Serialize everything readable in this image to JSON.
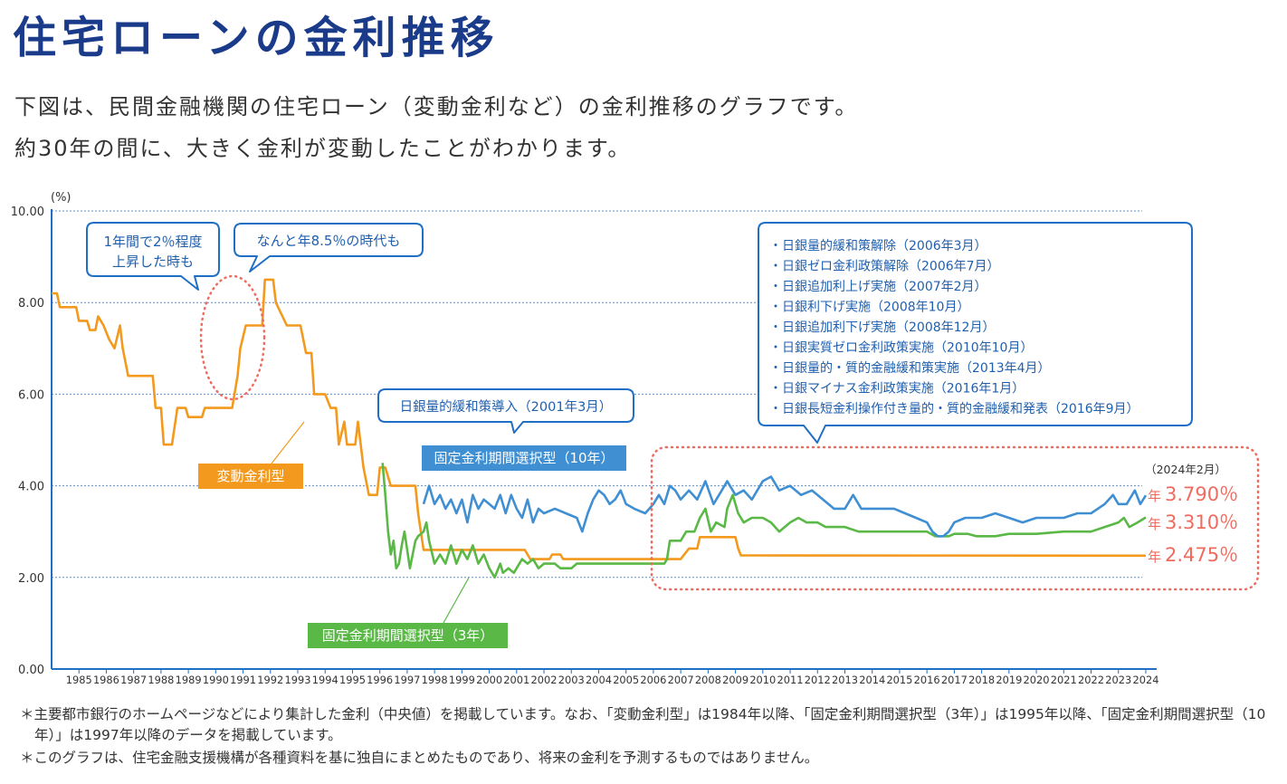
{
  "title": "住宅ローンの金利推移",
  "intro": [
    "下図は、民間金融機関の住宅ローン（変動金利など）の金利推移のグラフです。",
    "約30年の間に、大きく金利が変動したことがわかります。"
  ],
  "notes": [
    "＊主要都市銀行のホームページなどにより集計した金利（中央値）を掲載しています。なお、「変動金利型」は1984年以降、「固定金利期間選択型（3年）」は1995年以降、「固定金利期間選択型（10年）」は1997年以降のデータを掲載しています。",
    "＊このグラフは、住宅金融支援機構が各種資料を基に独自にまとめたものであり、将来の金利を予測するものではありません。"
  ],
  "colors": {
    "title": "#1a3a8a",
    "axis": "#1f6fc5",
    "grid": "#5a8fd0",
    "variable": "#f39a1e",
    "fixed3": "#5ab946",
    "fixed10": "#3f8fd2",
    "accent_red": "#ef6b5f"
  },
  "chart_data": {
    "type": "line",
    "ylabel": "(%)",
    "ylim": [
      0,
      10
    ],
    "yticks": [
      "0.00",
      "2.00",
      "4.00",
      "6.00",
      "8.00",
      "10.00"
    ],
    "xlim": [
      1984,
      2024.2
    ],
    "xticks": [
      "1985",
      "1986",
      "1987",
      "1988",
      "1989",
      "1990",
      "1991",
      "1992",
      "1993",
      "1994",
      "1995",
      "1996",
      "1997",
      "1998",
      "1999",
      "2000",
      "2001",
      "2002",
      "2003",
      "2004",
      "2005",
      "2006",
      "2007",
      "2008",
      "2009",
      "2010",
      "2011",
      "2012",
      "2013",
      "2014",
      "2015",
      "2016",
      "2017",
      "2018",
      "2019",
      "2020",
      "2021",
      "2022",
      "2023",
      "2024"
    ],
    "series": [
      {
        "name": "変動金利型",
        "color": "#f39a1e",
        "points": [
          [
            1984.0,
            8.2
          ],
          [
            1984.2,
            8.2
          ],
          [
            1984.3,
            7.9
          ],
          [
            1984.9,
            7.9
          ],
          [
            1985.0,
            7.6
          ],
          [
            1985.3,
            7.6
          ],
          [
            1985.4,
            7.4
          ],
          [
            1985.6,
            7.4
          ],
          [
            1985.7,
            7.7
          ],
          [
            1985.9,
            7.5
          ],
          [
            1986.1,
            7.2
          ],
          [
            1986.3,
            7.0
          ],
          [
            1986.5,
            7.5
          ],
          [
            1986.6,
            7.0
          ],
          [
            1986.8,
            6.4
          ],
          [
            1987.7,
            6.4
          ],
          [
            1987.8,
            5.7
          ],
          [
            1988.0,
            5.7
          ],
          [
            1988.1,
            4.9
          ],
          [
            1988.4,
            4.9
          ],
          [
            1988.6,
            5.7
          ],
          [
            1988.9,
            5.7
          ],
          [
            1989.0,
            5.5
          ],
          [
            1989.5,
            5.5
          ],
          [
            1989.6,
            5.7
          ],
          [
            1990.6,
            5.7
          ],
          [
            1990.8,
            6.4
          ],
          [
            1990.9,
            7.0
          ],
          [
            1991.1,
            7.5
          ],
          [
            1991.7,
            7.5
          ],
          [
            1991.8,
            8.5
          ],
          [
            1992.1,
            8.5
          ],
          [
            1992.2,
            8.0
          ],
          [
            1992.6,
            7.5
          ],
          [
            1993.1,
            7.5
          ],
          [
            1993.3,
            6.9
          ],
          [
            1993.5,
            6.9
          ],
          [
            1993.6,
            6.0
          ],
          [
            1994.0,
            6.0
          ],
          [
            1994.2,
            5.7
          ],
          [
            1994.4,
            5.7
          ],
          [
            1994.5,
            4.9
          ],
          [
            1994.7,
            5.4
          ],
          [
            1994.8,
            4.9
          ],
          [
            1995.1,
            4.9
          ],
          [
            1995.2,
            5.4
          ],
          [
            1995.4,
            4.4
          ],
          [
            1995.6,
            3.8
          ],
          [
            1995.9,
            3.8
          ],
          [
            1996.0,
            4.4
          ],
          [
            1996.2,
            4.4
          ],
          [
            1996.4,
            4.0
          ],
          [
            1997.3,
            4.0
          ],
          [
            1997.4,
            3.4
          ],
          [
            1997.6,
            2.6
          ],
          [
            2001.3,
            2.6
          ],
          [
            2001.5,
            2.4
          ],
          [
            2002.2,
            2.4
          ],
          [
            2002.3,
            2.5
          ],
          [
            2002.6,
            2.5
          ],
          [
            2002.7,
            2.4
          ],
          [
            2007.0,
            2.4
          ],
          [
            2007.3,
            2.63
          ],
          [
            2007.6,
            2.63
          ],
          [
            2007.7,
            2.88
          ],
          [
            2009.0,
            2.88
          ],
          [
            2009.1,
            2.63
          ],
          [
            2009.2,
            2.48
          ],
          [
            2024.0,
            2.475
          ]
        ]
      },
      {
        "name": "固定金利期間選択型（3年）",
        "color": "#5ab946",
        "points": [
          [
            1996.1,
            4.5
          ],
          [
            1996.2,
            3.8
          ],
          [
            1996.3,
            3.0
          ],
          [
            1996.4,
            2.5
          ],
          [
            1996.5,
            2.8
          ],
          [
            1996.6,
            2.2
          ],
          [
            1996.7,
            2.3
          ],
          [
            1996.8,
            2.7
          ],
          [
            1996.9,
            3.0
          ],
          [
            1997.0,
            2.6
          ],
          [
            1997.1,
            2.2
          ],
          [
            1997.3,
            2.8
          ],
          [
            1997.4,
            2.9
          ],
          [
            1997.6,
            3.0
          ],
          [
            1997.7,
            3.2
          ],
          [
            1997.8,
            2.8
          ],
          [
            1998.0,
            2.3
          ],
          [
            1998.2,
            2.5
          ],
          [
            1998.4,
            2.3
          ],
          [
            1998.6,
            2.7
          ],
          [
            1998.8,
            2.3
          ],
          [
            1999.0,
            2.6
          ],
          [
            1999.2,
            2.4
          ],
          [
            1999.4,
            2.7
          ],
          [
            1999.6,
            2.3
          ],
          [
            1999.8,
            2.5
          ],
          [
            2000.0,
            2.2
          ],
          [
            2000.2,
            2.0
          ],
          [
            2000.4,
            2.3
          ],
          [
            2000.5,
            2.1
          ],
          [
            2000.7,
            2.2
          ],
          [
            2000.9,
            2.1
          ],
          [
            2001.0,
            2.2
          ],
          [
            2001.2,
            2.4
          ],
          [
            2001.4,
            2.3
          ],
          [
            2001.6,
            2.4
          ],
          [
            2001.8,
            2.2
          ],
          [
            2002.0,
            2.3
          ],
          [
            2002.4,
            2.3
          ],
          [
            2002.6,
            2.2
          ],
          [
            2003.0,
            2.2
          ],
          [
            2003.2,
            2.3
          ],
          [
            2006.4,
            2.3
          ],
          [
            2006.5,
            2.4
          ],
          [
            2006.6,
            2.8
          ],
          [
            2007.0,
            2.8
          ],
          [
            2007.2,
            3.0
          ],
          [
            2007.5,
            3.0
          ],
          [
            2007.7,
            3.3
          ],
          [
            2007.9,
            3.5
          ],
          [
            2008.1,
            3.0
          ],
          [
            2008.3,
            3.2
          ],
          [
            2008.6,
            3.1
          ],
          [
            2008.7,
            3.5
          ],
          [
            2008.9,
            3.8
          ],
          [
            2009.1,
            3.4
          ],
          [
            2009.3,
            3.2
          ],
          [
            2009.6,
            3.3
          ],
          [
            2010.0,
            3.3
          ],
          [
            2010.3,
            3.2
          ],
          [
            2010.6,
            3.0
          ],
          [
            2011.0,
            3.2
          ],
          [
            2011.3,
            3.3
          ],
          [
            2011.6,
            3.2
          ],
          [
            2012.0,
            3.2
          ],
          [
            2012.3,
            3.1
          ],
          [
            2013.0,
            3.1
          ],
          [
            2013.5,
            3.0
          ],
          [
            2014.5,
            3.0
          ],
          [
            2015.0,
            3.0
          ],
          [
            2016.0,
            3.0
          ],
          [
            2016.3,
            2.9
          ],
          [
            2016.5,
            2.9
          ],
          [
            2016.8,
            2.9
          ],
          [
            2017.0,
            2.95
          ],
          [
            2017.5,
            2.95
          ],
          [
            2017.8,
            2.9
          ],
          [
            2018.5,
            2.9
          ],
          [
            2019.0,
            2.95
          ],
          [
            2020.0,
            2.95
          ],
          [
            2021.0,
            3.0
          ],
          [
            2022.0,
            3.0
          ],
          [
            2022.5,
            3.1
          ],
          [
            2023.0,
            3.2
          ],
          [
            2023.2,
            3.3
          ],
          [
            2023.4,
            3.1
          ],
          [
            2023.7,
            3.2
          ],
          [
            2024.0,
            3.31
          ]
        ]
      },
      {
        "name": "固定金利期間選択型（10年）",
        "color": "#3f8fd2",
        "points": [
          [
            1997.6,
            3.6
          ],
          [
            1997.8,
            4.0
          ],
          [
            1998.0,
            3.6
          ],
          [
            1998.2,
            3.8
          ],
          [
            1998.4,
            3.5
          ],
          [
            1998.6,
            3.7
          ],
          [
            1998.8,
            3.4
          ],
          [
            1999.0,
            3.7
          ],
          [
            1999.2,
            3.2
          ],
          [
            1999.4,
            3.8
          ],
          [
            1999.6,
            3.5
          ],
          [
            1999.8,
            3.7
          ],
          [
            2000.0,
            3.6
          ],
          [
            2000.2,
            3.5
          ],
          [
            2000.4,
            3.8
          ],
          [
            2000.6,
            3.4
          ],
          [
            2000.8,
            3.8
          ],
          [
            2001.0,
            3.5
          ],
          [
            2001.2,
            3.3
          ],
          [
            2001.4,
            3.7
          ],
          [
            2001.6,
            3.2
          ],
          [
            2001.8,
            3.5
          ],
          [
            2002.0,
            3.4
          ],
          [
            2002.4,
            3.5
          ],
          [
            2002.8,
            3.4
          ],
          [
            2003.2,
            3.3
          ],
          [
            2003.4,
            3.0
          ],
          [
            2003.6,
            3.4
          ],
          [
            2003.8,
            3.7
          ],
          [
            2004.0,
            3.9
          ],
          [
            2004.2,
            3.8
          ],
          [
            2004.4,
            3.6
          ],
          [
            2004.6,
            3.7
          ],
          [
            2004.8,
            3.9
          ],
          [
            2005.0,
            3.6
          ],
          [
            2005.3,
            3.5
          ],
          [
            2005.7,
            3.4
          ],
          [
            2006.0,
            3.6
          ],
          [
            2006.2,
            3.8
          ],
          [
            2006.4,
            3.6
          ],
          [
            2006.6,
            4.0
          ],
          [
            2006.8,
            3.9
          ],
          [
            2007.0,
            3.7
          ],
          [
            2007.3,
            3.9
          ],
          [
            2007.6,
            3.7
          ],
          [
            2007.9,
            4.1
          ],
          [
            2008.2,
            3.6
          ],
          [
            2008.4,
            3.8
          ],
          [
            2008.7,
            4.1
          ],
          [
            2009.0,
            3.8
          ],
          [
            2009.3,
            3.9
          ],
          [
            2009.6,
            3.7
          ],
          [
            2010.0,
            4.1
          ],
          [
            2010.3,
            4.2
          ],
          [
            2010.6,
            3.9
          ],
          [
            2011.0,
            4.0
          ],
          [
            2011.4,
            3.8
          ],
          [
            2011.8,
            3.9
          ],
          [
            2012.2,
            3.7
          ],
          [
            2012.6,
            3.5
          ],
          [
            2013.0,
            3.5
          ],
          [
            2013.3,
            3.8
          ],
          [
            2013.6,
            3.5
          ],
          [
            2014.0,
            3.5
          ],
          [
            2014.4,
            3.5
          ],
          [
            2014.8,
            3.5
          ],
          [
            2015.2,
            3.4
          ],
          [
            2015.6,
            3.3
          ],
          [
            2016.0,
            3.2
          ],
          [
            2016.2,
            3.0
          ],
          [
            2016.4,
            2.9
          ],
          [
            2016.6,
            2.9
          ],
          [
            2016.8,
            3.0
          ],
          [
            2017.0,
            3.2
          ],
          [
            2017.4,
            3.3
          ],
          [
            2018.0,
            3.3
          ],
          [
            2018.5,
            3.4
          ],
          [
            2019.0,
            3.3
          ],
          [
            2019.5,
            3.2
          ],
          [
            2020.0,
            3.3
          ],
          [
            2021.0,
            3.3
          ],
          [
            2021.5,
            3.4
          ],
          [
            2022.0,
            3.4
          ],
          [
            2022.5,
            3.6
          ],
          [
            2022.8,
            3.8
          ],
          [
            2023.0,
            3.6
          ],
          [
            2023.3,
            3.6
          ],
          [
            2023.6,
            3.9
          ],
          [
            2023.8,
            3.6
          ],
          [
            2024.0,
            3.79
          ]
        ]
      }
    ],
    "series_labels": [
      {
        "text": "変動金利型",
        "color": "#f39a1e"
      },
      {
        "text": "固定金利期間選択型（3年）",
        "color": "#5ab946"
      },
      {
        "text": "固定金利期間選択型（10年）",
        "color": "#3f8fd2"
      }
    ],
    "callouts": {
      "rise": "1年間で2％程度\n上昇した時も",
      "peak": "なんと年8.5％の時代も",
      "qe2001": "日銀量的緩和策導入（2001年3月）",
      "policy_list": [
        "・日銀量的緩和策解除（2006年3月）",
        "・日銀ゼロ金利政策解除（2006年7月）",
        "・日銀追加利上げ実施（2007年2月）",
        "・日銀利下げ実施（2008年10月）",
        "・日銀追加利下げ実施（2008年12月）",
        "・日銀実質ゼロ金利政策実施（2010年10月）",
        "・日銀量的・質的金融緩和策実施（2013年4月）",
        "・日銀マイナス金利政策実施（2016年1月）",
        "・日銀長短金利操作付き量的・質的金融緩和発表（2016年9月）"
      ]
    },
    "latest": {
      "date": "（2024年2月）",
      "prefix": "年",
      "values": [
        "3.790％",
        "3.310％",
        "2.475％"
      ]
    }
  }
}
